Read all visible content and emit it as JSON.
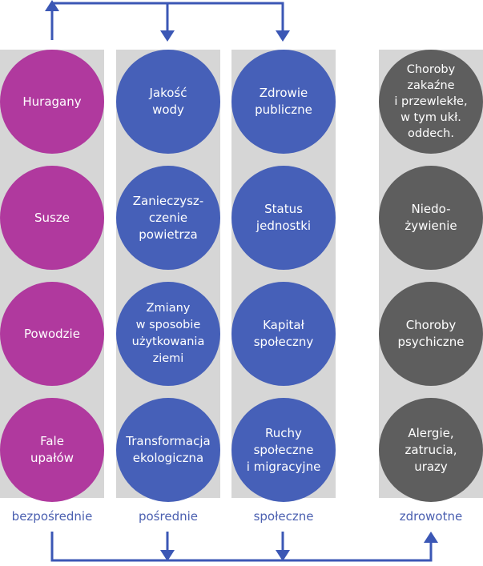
{
  "colors": {
    "direct": "#b0399e",
    "indirect": "#4660b8",
    "health": "#5e5e5e",
    "column_bg": "#d6d6d6",
    "arrows": "#3b57b5",
    "label_text": "#4a5fb0"
  },
  "columns": [
    {
      "label": "bezpośrednie",
      "items": [
        "Huragany",
        "Susze",
        "Powodzie",
        "Fale\nupałów"
      ]
    },
    {
      "label": "pośrednie",
      "items": [
        "Jakość\nwody",
        "Zanieczysz-\nczenie\npowietrza",
        "Zmiany\nw sposobie\nużytkowania\nziemi",
        "Transformacja\nekologiczna"
      ]
    },
    {
      "label": "społeczne",
      "items": [
        "Zdrowie\npubliczne",
        "Status\njednostki",
        "Kapitał\nspołeczny",
        "Ruchy\nspołeczne\ni migracyjne"
      ]
    },
    {
      "label": "zdrowotne",
      "items": [
        "Choroby\nzakaźne\ni przewlekłe,\nw tym ukł.\noddech.",
        "Niedo-\nżywienie",
        "Choroby\npsychiczne",
        "Alergie,\nzatrucia,\nurazy"
      ]
    }
  ]
}
